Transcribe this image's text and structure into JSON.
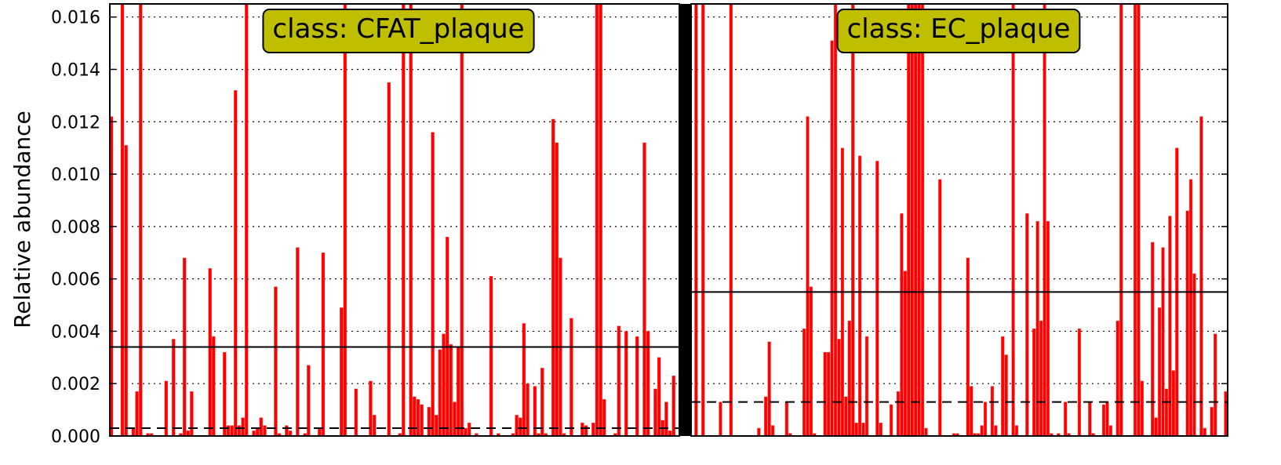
{
  "colors": {
    "bar": "#ff0000",
    "class_box_fill": "#bfbf00",
    "axis": "#000000",
    "mean_line": "#000000",
    "median_line": "#000000"
  },
  "chart_data": {
    "type": "bar",
    "ylabel": "Relative abundance",
    "ylim": [
      0,
      0.0165
    ],
    "yticks": [
      0.0,
      0.002,
      0.004,
      0.006,
      0.008,
      0.01,
      0.012,
      0.014,
      0.016
    ],
    "ytick_labels": [
      "0.000",
      "0.002",
      "0.004",
      "0.006",
      "0.008",
      "0.010",
      "0.012",
      "0.014",
      "0.016"
    ],
    "grid": "horizontal dotted",
    "panels": [
      {
        "class_label": "class: CFAT_plaque",
        "mean_line": 0.0034,
        "median_line": 0.0003,
        "values": [
          0.0122,
          0,
          0,
          0.0165,
          0.0111,
          0,
          0.0003,
          0.0017,
          0.0165,
          0,
          0.0001,
          0.0001,
          0,
          0,
          0,
          0.0021,
          0,
          0.0037,
          0,
          0.0001,
          0.0068,
          0.0002,
          0.0017,
          0,
          0,
          0,
          0,
          0.0064,
          0.0038,
          0,
          0,
          0.0032,
          0.0004,
          0.0004,
          0.0132,
          0.0004,
          0.0007,
          0.0165,
          0,
          0.0002,
          0.0003,
          0.0007,
          0.0004,
          0,
          0,
          0.0057,
          0.0001,
          0,
          0.0004,
          0.0002,
          0,
          0.0072,
          0,
          0.0001,
          0.0027,
          0,
          0,
          0.0003,
          0.007,
          0,
          0,
          0,
          0,
          0.0049,
          0.0165,
          0,
          0,
          0.0018,
          0,
          0,
          0,
          0.0021,
          0.0008,
          0,
          0,
          0,
          0.0135,
          0,
          0,
          0.0001,
          0.0165,
          0,
          0.0165,
          0.0015,
          0.0014,
          0.0012,
          0,
          0.0011,
          0.0116,
          0.0008,
          0.0033,
          0.0039,
          0.0076,
          0.0035,
          0.0013,
          0.0034,
          0.0165,
          0.0003,
          0.0005,
          0,
          0.0001,
          0,
          0,
          0,
          0.0061,
          0,
          0.0001,
          0,
          0,
          0,
          0.0001,
          0.0008,
          0.0007,
          0.0043,
          0.002,
          0,
          0.0019,
          0.0001,
          0.0026,
          0.0001,
          0,
          0.0121,
          0.0112,
          0.0068,
          0.0001,
          0,
          0.0045,
          0,
          0,
          0.0005,
          0.0004,
          0,
          0.0005,
          0.0165,
          0.0165,
          0.0014,
          0,
          0,
          0.0001,
          0.0042,
          0,
          0.004,
          0,
          0,
          0.0038,
          0,
          0.0112,
          0.004,
          0,
          0.0018,
          0.003,
          0.0006,
          0.0013,
          0.0002,
          0.0023,
          0
        ]
      },
      {
        "class_label": "class: EC_plaque",
        "mean_line": 0.0055,
        "median_line": 0.0013,
        "values": [
          0,
          0.0165,
          0,
          0.0165,
          0,
          0,
          0,
          0,
          0.0013,
          0,
          0,
          0.0165,
          0,
          0,
          0,
          0,
          0,
          0,
          0,
          0.0003,
          0,
          0.0015,
          0.0036,
          0.0004,
          0,
          0,
          0,
          0.0013,
          0.0001,
          0,
          0,
          0,
          0.0041,
          0.0122,
          0.0057,
          0.0001,
          0,
          0,
          0.0032,
          0.0032,
          0.0151,
          0.0165,
          0.0037,
          0.011,
          0.0015,
          0.0044,
          0.0165,
          0.0005,
          0.0107,
          0.0005,
          0.0038,
          0,
          0,
          0.0105,
          0.0005,
          0,
          0,
          0.0012,
          0,
          0.0017,
          0.0085,
          0.0063,
          0.0165,
          0.0165,
          0.0165,
          0.0165,
          0.0165,
          0.0003,
          0,
          0,
          0,
          0.0098,
          0,
          0,
          0,
          0.0001,
          0.0001,
          0,
          0,
          0.0068,
          0.0019,
          0.0001,
          0.0001,
          0.0004,
          0.0013,
          0,
          0.0019,
          0.0004,
          0,
          0.0038,
          0.0031,
          0,
          0.0165,
          0.0004,
          0,
          0,
          0.0085,
          0,
          0.0041,
          0.0082,
          0.0044,
          0.0165,
          0.0082,
          0.0001,
          0,
          0.0001,
          0,
          0.0013,
          0.0001,
          0,
          0,
          0.0041,
          0,
          0,
          0.0013,
          0.0001,
          0,
          0,
          0.0012,
          0.0013,
          0.0004,
          0,
          0.0044,
          0.0165,
          0,
          0,
          0,
          0.0165,
          0.0165,
          0.0021,
          0,
          0,
          0.0074,
          0.0007,
          0.0049,
          0.0072,
          0.0018,
          0.0084,
          0.0025,
          0.011,
          0,
          0,
          0.0086,
          0.0098,
          0.0062,
          0,
          0.0122,
          0.0003,
          0,
          0.0011,
          0.0039,
          0,
          0,
          0.0017
        ]
      }
    ]
  }
}
